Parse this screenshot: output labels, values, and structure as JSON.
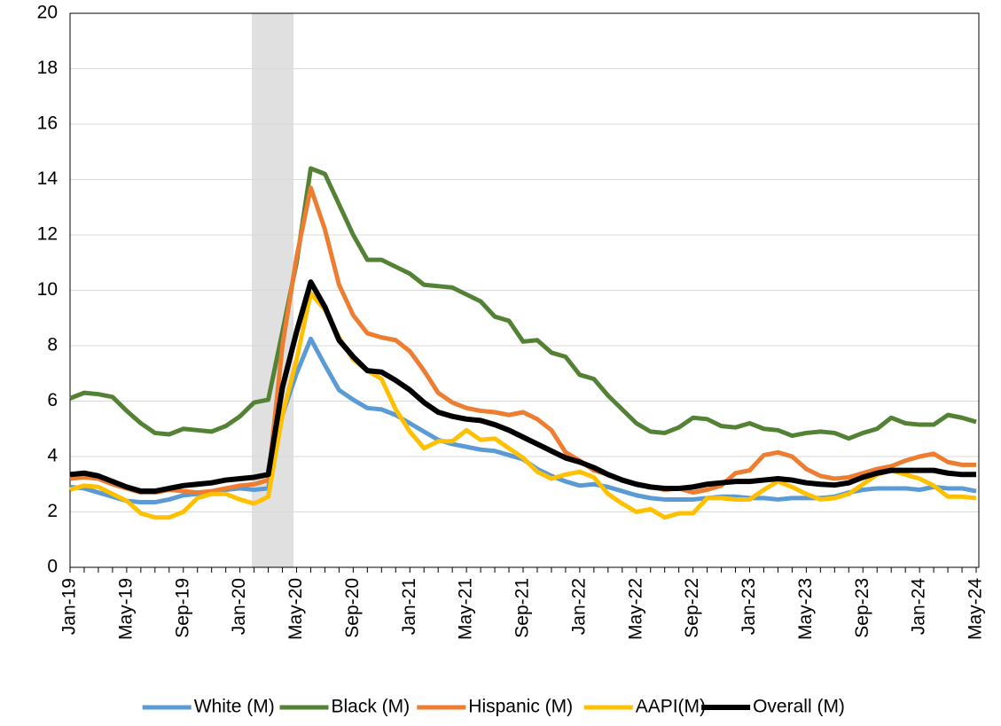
{
  "chart_data": {
    "type": "line",
    "categories": [
      "Jan-19",
      null,
      null,
      null,
      "May-19",
      null,
      null,
      null,
      "Sep-19",
      null,
      null,
      null,
      "Jan-20",
      null,
      null,
      null,
      "May-20",
      null,
      null,
      null,
      "Sep-20",
      null,
      null,
      null,
      "Jan-21",
      null,
      null,
      null,
      "May-21",
      null,
      null,
      null,
      "Sep-21",
      null,
      null,
      null,
      "Jan-22",
      null,
      null,
      null,
      "May-22",
      null,
      null,
      null,
      "Sep-22",
      null,
      null,
      null,
      "Jan-23",
      null,
      null,
      null,
      "May-23",
      null,
      null,
      null,
      "Sep-23",
      null,
      null,
      null,
      "Jan-24",
      null,
      null,
      null,
      "May-24"
    ],
    "series": [
      {
        "name": "White (M)",
        "color": "#5b9bd5",
        "values": [
          2.9,
          2.85,
          2.7,
          2.55,
          2.4,
          2.35,
          2.35,
          2.45,
          2.6,
          2.65,
          2.7,
          2.8,
          2.85,
          2.8,
          2.85,
          5.5,
          7,
          8.25,
          7.3,
          6.4,
          6.05,
          5.75,
          5.7,
          5.5,
          5.2,
          4.9,
          4.6,
          4.45,
          4.35,
          4.25,
          4.2,
          4.05,
          3.9,
          3.55,
          3.3,
          3.1,
          2.95,
          3.0,
          2.9,
          2.75,
          2.6,
          2.5,
          2.45,
          2.45,
          2.45,
          2.5,
          2.55,
          2.55,
          2.5,
          2.5,
          2.45,
          2.5,
          2.5,
          2.5,
          2.55,
          2.7,
          2.8,
          2.85,
          2.85,
          2.85,
          2.8,
          2.9,
          2.85,
          2.85,
          2.75
        ]
      },
      {
        "name": "Black (M)",
        "color": "#548235",
        "values": [
          6.1,
          6.3,
          6.25,
          6.15,
          5.65,
          5.2,
          4.85,
          4.8,
          5.0,
          4.95,
          4.9,
          5.1,
          5.45,
          5.95,
          6.05,
          8.5,
          11,
          14.4,
          14.2,
          13.1,
          12.0,
          11.1,
          11.1,
          10.85,
          10.6,
          10.2,
          10.15,
          10.1,
          9.85,
          9.6,
          9.05,
          8.9,
          8.15,
          8.2,
          7.75,
          7.6,
          6.95,
          6.8,
          6.2,
          5.7,
          5.2,
          4.9,
          4.85,
          5.05,
          5.4,
          5.35,
          5.1,
          5.05,
          5.2,
          5.0,
          4.95,
          4.75,
          4.85,
          4.9,
          4.85,
          4.65,
          4.85,
          5.0,
          5.4,
          5.2,
          5.15,
          5.15,
          5.5,
          5.4,
          5.25
        ]
      },
      {
        "name": "Hispanic (M)",
        "color": "#ed7d31",
        "values": [
          3.2,
          3.25,
          3.2,
          3.0,
          2.85,
          2.7,
          2.7,
          2.8,
          2.75,
          2.7,
          2.75,
          2.85,
          2.95,
          3.0,
          3.15,
          8,
          11.2,
          13.7,
          12.2,
          10.2,
          9.1,
          8.45,
          8.3,
          8.2,
          7.8,
          7.1,
          6.3,
          5.95,
          5.75,
          5.65,
          5.6,
          5.5,
          5.6,
          5.35,
          4.95,
          4.15,
          3.85,
          3.5,
          3.35,
          3.15,
          3.0,
          2.9,
          2.8,
          2.85,
          2.7,
          2.8,
          2.95,
          3.4,
          3.5,
          4.05,
          4.15,
          4.0,
          3.55,
          3.3,
          3.2,
          3.25,
          3.4,
          3.55,
          3.65,
          3.85,
          4.0,
          4.1,
          3.8,
          3.7,
          3.7
        ]
      },
      {
        "name": "AAPI(M)",
        "color": "#ffc000",
        "values": [
          2.8,
          2.95,
          2.9,
          2.65,
          2.4,
          1.95,
          1.8,
          1.8,
          2.0,
          2.5,
          2.65,
          2.65,
          2.45,
          2.3,
          2.55,
          5.5,
          7.5,
          9.9,
          9.3,
          8.3,
          7.5,
          7.1,
          6.8,
          5.7,
          4.9,
          4.3,
          4.55,
          4.55,
          4.95,
          4.6,
          4.65,
          4.3,
          3.95,
          3.45,
          3.2,
          3.35,
          3.45,
          3.25,
          2.65,
          2.3,
          2.0,
          2.1,
          1.8,
          1.95,
          1.95,
          2.5,
          2.5,
          2.45,
          2.45,
          2.8,
          3.1,
          2.9,
          2.65,
          2.45,
          2.5,
          2.65,
          3.0,
          3.35,
          3.5,
          3.35,
          3.2,
          2.95,
          2.55,
          2.55,
          2.5
        ]
      },
      {
        "name": "Overall (M)",
        "color": "#000000",
        "values": [
          3.35,
          3.4,
          3.3,
          3.1,
          2.9,
          2.75,
          2.75,
          2.85,
          2.95,
          3.0,
          3.05,
          3.15,
          3.2,
          3.25,
          3.35,
          6.5,
          8.5,
          10.3,
          9.4,
          8.2,
          7.6,
          7.1,
          7.05,
          6.75,
          6.4,
          5.95,
          5.6,
          5.45,
          5.35,
          5.3,
          5.15,
          4.95,
          4.7,
          4.45,
          4.2,
          3.95,
          3.8,
          3.6,
          3.35,
          3.15,
          3.0,
          2.9,
          2.85,
          2.85,
          2.9,
          3.0,
          3.05,
          3.1,
          3.1,
          3.15,
          3.2,
          3.15,
          3.05,
          3.0,
          2.97,
          3.05,
          3.25,
          3.4,
          3.5,
          3.5,
          3.5,
          3.5,
          3.4,
          3.35,
          3.35
        ]
      }
    ],
    "ylim": [
      0,
      20
    ],
    "yticks": [
      0,
      2,
      4,
      6,
      8,
      10,
      12,
      14,
      16,
      18,
      20
    ],
    "grid": true,
    "legend": "bottom"
  }
}
